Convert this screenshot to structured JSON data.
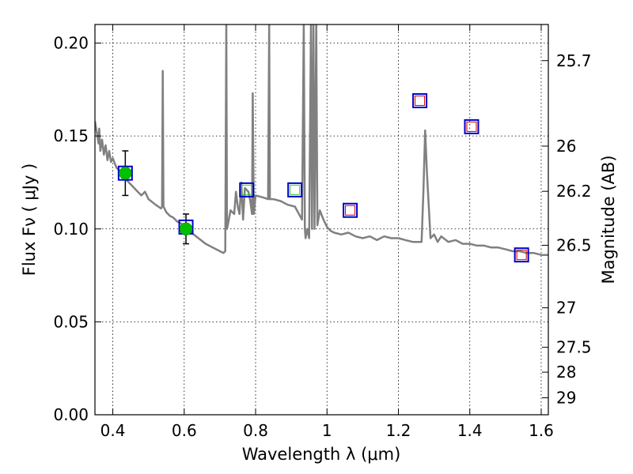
{
  "chart_data": {
    "type": "line",
    "xlabel": "Wavelength  λ (μm)",
    "ylabel": "Flux  Fν  ( μJy )",
    "ylabel_right": "Magnitude (AB)",
    "xlim": [
      0.35,
      1.62
    ],
    "ylim": [
      0,
      0.21
    ],
    "grid": true,
    "x_ticks": [
      {
        "value": 0.4,
        "label": "0.4"
      },
      {
        "value": 0.6,
        "label": "0.6"
      },
      {
        "value": 0.8,
        "label": "0.8"
      },
      {
        "value": 1.0,
        "label": "1"
      },
      {
        "value": 1.2,
        "label": "1.2"
      },
      {
        "value": 1.4,
        "label": "1.4"
      },
      {
        "value": 1.6,
        "label": "1.6"
      }
    ],
    "y_ticks": [
      {
        "value": 0.0,
        "label": "0.00"
      },
      {
        "value": 0.05,
        "label": "0.05"
      },
      {
        "value": 0.1,
        "label": "0.10"
      },
      {
        "value": 0.15,
        "label": "0.15"
      },
      {
        "value": 0.2,
        "label": "0.20"
      }
    ],
    "right_ticks": [
      {
        "value": 25.7,
        "label": "25.7"
      },
      {
        "value": 26.0,
        "label": "26"
      },
      {
        "value": 26.2,
        "label": "26.2"
      },
      {
        "value": 26.5,
        "label": "26.5"
      },
      {
        "value": 27.0,
        "label": "27"
      },
      {
        "value": 27.5,
        "label": "27.5"
      },
      {
        "value": 28.0,
        "label": "28"
      },
      {
        "value": 29.0,
        "label": "29"
      }
    ],
    "model_spectrum": {
      "color": "#808080",
      "points": [
        [
          0.35,
          0.158
        ],
        [
          0.355,
          0.152
        ],
        [
          0.36,
          0.146
        ],
        [
          0.362,
          0.154
        ],
        [
          0.365,
          0.142
        ],
        [
          0.37,
          0.148
        ],
        [
          0.375,
          0.14
        ],
        [
          0.38,
          0.145
        ],
        [
          0.385,
          0.137
        ],
        [
          0.39,
          0.142
        ],
        [
          0.395,
          0.136
        ],
        [
          0.4,
          0.138
        ],
        [
          0.41,
          0.133
        ],
        [
          0.42,
          0.131
        ],
        [
          0.43,
          0.128
        ],
        [
          0.44,
          0.126
        ],
        [
          0.45,
          0.124
        ],
        [
          0.46,
          0.122
        ],
        [
          0.47,
          0.12
        ],
        [
          0.48,
          0.118
        ],
        [
          0.49,
          0.12
        ],
        [
          0.5,
          0.116
        ],
        [
          0.52,
          0.113
        ],
        [
          0.535,
          0.111
        ],
        [
          0.538,
          0.112
        ],
        [
          0.54,
          0.185
        ],
        [
          0.542,
          0.112
        ],
        [
          0.55,
          0.109
        ],
        [
          0.56,
          0.107
        ],
        [
          0.57,
          0.106
        ],
        [
          0.58,
          0.104
        ],
        [
          0.6,
          0.102
        ],
        [
          0.62,
          0.098
        ],
        [
          0.64,
          0.095
        ],
        [
          0.66,
          0.092
        ],
        [
          0.68,
          0.09
        ],
        [
          0.7,
          0.088
        ],
        [
          0.71,
          0.087
        ],
        [
          0.715,
          0.088
        ],
        [
          0.718,
          0.21
        ],
        [
          0.72,
          0.1
        ],
        [
          0.725,
          0.105
        ],
        [
          0.73,
          0.11
        ],
        [
          0.74,
          0.108
        ],
        [
          0.745,
          0.12
        ],
        [
          0.75,
          0.112
        ],
        [
          0.755,
          0.108
        ],
        [
          0.76,
          0.125
        ],
        [
          0.765,
          0.105
        ],
        [
          0.77,
          0.122
        ],
        [
          0.78,
          0.12
        ],
        [
          0.785,
          0.115
        ],
        [
          0.79,
          0.108
        ],
        [
          0.792,
          0.173
        ],
        [
          0.795,
          0.108
        ],
        [
          0.8,
          0.118
        ],
        [
          0.82,
          0.117
        ],
        [
          0.835,
          0.116
        ],
        [
          0.838,
          0.21
        ],
        [
          0.84,
          0.116
        ],
        [
          0.85,
          0.116
        ],
        [
          0.87,
          0.115
        ],
        [
          0.89,
          0.113
        ],
        [
          0.91,
          0.112
        ],
        [
          0.93,
          0.105
        ],
        [
          0.935,
          0.21
        ],
        [
          0.938,
          0.1
        ],
        [
          0.94,
          0.095
        ],
        [
          0.945,
          0.1
        ],
        [
          0.95,
          0.095
        ],
        [
          0.955,
          0.21
        ],
        [
          0.958,
          0.1
        ],
        [
          0.962,
          0.21
        ],
        [
          0.965,
          0.1
        ],
        [
          0.97,
          0.21
        ],
        [
          0.973,
          0.102
        ],
        [
          0.98,
          0.11
        ],
        [
          0.99,
          0.105
        ],
        [
          1.0,
          0.101
        ],
        [
          1.01,
          0.099
        ],
        [
          1.02,
          0.098
        ],
        [
          1.04,
          0.097
        ],
        [
          1.06,
          0.098
        ],
        [
          1.08,
          0.096
        ],
        [
          1.1,
          0.095
        ],
        [
          1.12,
          0.096
        ],
        [
          1.14,
          0.094
        ],
        [
          1.16,
          0.096
        ],
        [
          1.18,
          0.095
        ],
        [
          1.2,
          0.095
        ],
        [
          1.22,
          0.094
        ],
        [
          1.24,
          0.093
        ],
        [
          1.26,
          0.093
        ],
        [
          1.265,
          0.093
        ],
        [
          1.27,
          0.12
        ],
        [
          1.275,
          0.153
        ],
        [
          1.28,
          0.13
        ],
        [
          1.29,
          0.095
        ],
        [
          1.3,
          0.097
        ],
        [
          1.31,
          0.093
        ],
        [
          1.32,
          0.096
        ],
        [
          1.34,
          0.093
        ],
        [
          1.36,
          0.094
        ],
        [
          1.38,
          0.092
        ],
        [
          1.4,
          0.092
        ],
        [
          1.42,
          0.091
        ],
        [
          1.44,
          0.091
        ],
        [
          1.46,
          0.09
        ],
        [
          1.48,
          0.09
        ],
        [
          1.5,
          0.089
        ],
        [
          1.52,
          0.088
        ],
        [
          1.54,
          0.088
        ],
        [
          1.56,
          0.087
        ],
        [
          1.58,
          0.087
        ],
        [
          1.6,
          0.086
        ],
        [
          1.62,
          0.086
        ]
      ]
    },
    "observed": {
      "color": "#00c000",
      "points": [
        {
          "x": 0.435,
          "y": 0.13,
          "yerr": 0.012
        },
        {
          "x": 0.605,
          "y": 0.1,
          "yerr": 0.008
        }
      ]
    },
    "model_photometry": {
      "color": "#0000cc",
      "points": [
        {
          "x": 0.435,
          "y": 0.13
        },
        {
          "x": 0.605,
          "y": 0.101
        },
        {
          "x": 0.775,
          "y": 0.121
        },
        {
          "x": 0.91,
          "y": 0.121
        },
        {
          "x": 1.065,
          "y": 0.11
        },
        {
          "x": 1.26,
          "y": 0.169
        },
        {
          "x": 1.405,
          "y": 0.155
        },
        {
          "x": 1.545,
          "y": 0.086
        }
      ]
    },
    "inner_markers": {
      "points": [
        {
          "x": 0.775,
          "y": 0.121,
          "color": "#33cc33"
        },
        {
          "x": 0.91,
          "y": 0.121,
          "color": "#33cc33"
        },
        {
          "x": 1.065,
          "y": 0.11,
          "color": "#cc0000"
        },
        {
          "x": 1.26,
          "y": 0.169,
          "color": "#cc0000"
        },
        {
          "x": 1.405,
          "y": 0.155,
          "color": "#cc0000"
        },
        {
          "x": 1.545,
          "y": 0.086,
          "color": "#cc0000"
        }
      ]
    }
  }
}
